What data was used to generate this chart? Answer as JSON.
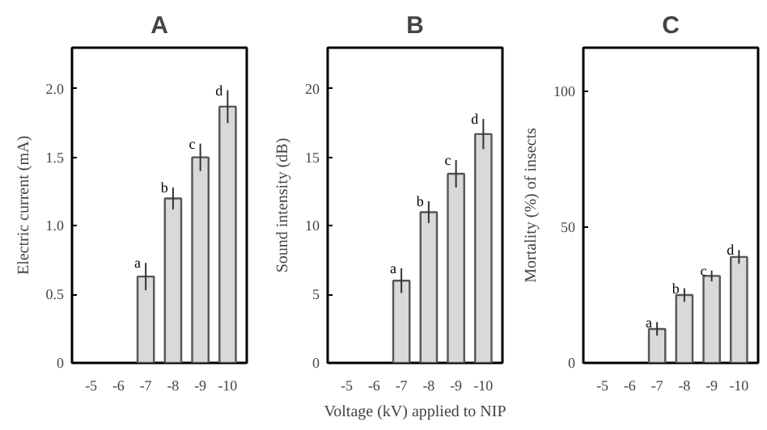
{
  "chart_data": [
    {
      "type": "bar",
      "title": "A",
      "ylabel": "Electric current (mA)",
      "categories": [
        "-5",
        "-6",
        "-7",
        "-8",
        "-9",
        "-10"
      ],
      "values": [
        null,
        null,
        0.63,
        1.2,
        1.5,
        1.87
      ],
      "errors": [
        null,
        null,
        0.1,
        0.08,
        0.1,
        0.12
      ],
      "color": "#d9d9d9",
      "ylim": [
        0,
        2.3
      ],
      "yticks": [
        0,
        0.5,
        {
          "value": 1,
          "label": "1.0"
        },
        1.5,
        {
          "value": 2,
          "label": "2.0"
        }
      ],
      "grid": false,
      "annotations": [
        {
          "text": "a",
          "x": "-7",
          "y": 0.73
        },
        {
          "text": "b",
          "x": "-8",
          "y": 1.28
        },
        {
          "text": "c",
          "x": "-9",
          "y": 1.6
        },
        {
          "text": "d",
          "x": "-10",
          "y": 1.99
        }
      ]
    },
    {
      "type": "bar",
      "title": "B",
      "ylabel": "Sound intensity (dB)",
      "xlabel": "Voltage (kV) applied to NIP",
      "categories": [
        "-5",
        "-6",
        "-7",
        "-8",
        "-9",
        "-10"
      ],
      "values": [
        null,
        null,
        6,
        11,
        13.8,
        16.7
      ],
      "errors": [
        null,
        null,
        0.9,
        0.8,
        1.0,
        1.1
      ],
      "color": "#d9d9d9",
      "ylim": [
        0,
        23
      ],
      "yticks": [
        0,
        5,
        10,
        15,
        20
      ],
      "grid": false,
      "annotations": [
        {
          "text": "a",
          "x": "-7",
          "y": 6.9
        },
        {
          "text": "b",
          "x": "-8",
          "y": 11.8
        },
        {
          "text": "c",
          "x": "-9",
          "y": 14.8
        },
        {
          "text": "d",
          "x": "-10",
          "y": 17.8
        }
      ]
    },
    {
      "type": "bar",
      "title": "C",
      "ylabel": "Mortality (%) of insects",
      "categories": [
        "-5",
        "-6",
        "-7",
        "-8",
        "-9",
        "-10"
      ],
      "values": [
        null,
        null,
        12.5,
        25,
        32,
        39
      ],
      "errors": [
        null,
        null,
        2.5,
        2.5,
        2,
        2.5
      ],
      "color": "#d9d9d9",
      "ylim": [
        0,
        116
      ],
      "yticks": [
        0,
        50,
        100
      ],
      "grid": false,
      "annotations": [
        {
          "text": "a",
          "x": "-7",
          "y": 15
        },
        {
          "text": "b",
          "x": "-8",
          "y": 27.5
        },
        {
          "text": "c",
          "x": "-9",
          "y": 34
        },
        {
          "text": "d",
          "x": "-10",
          "y": 41.5
        }
      ]
    }
  ]
}
